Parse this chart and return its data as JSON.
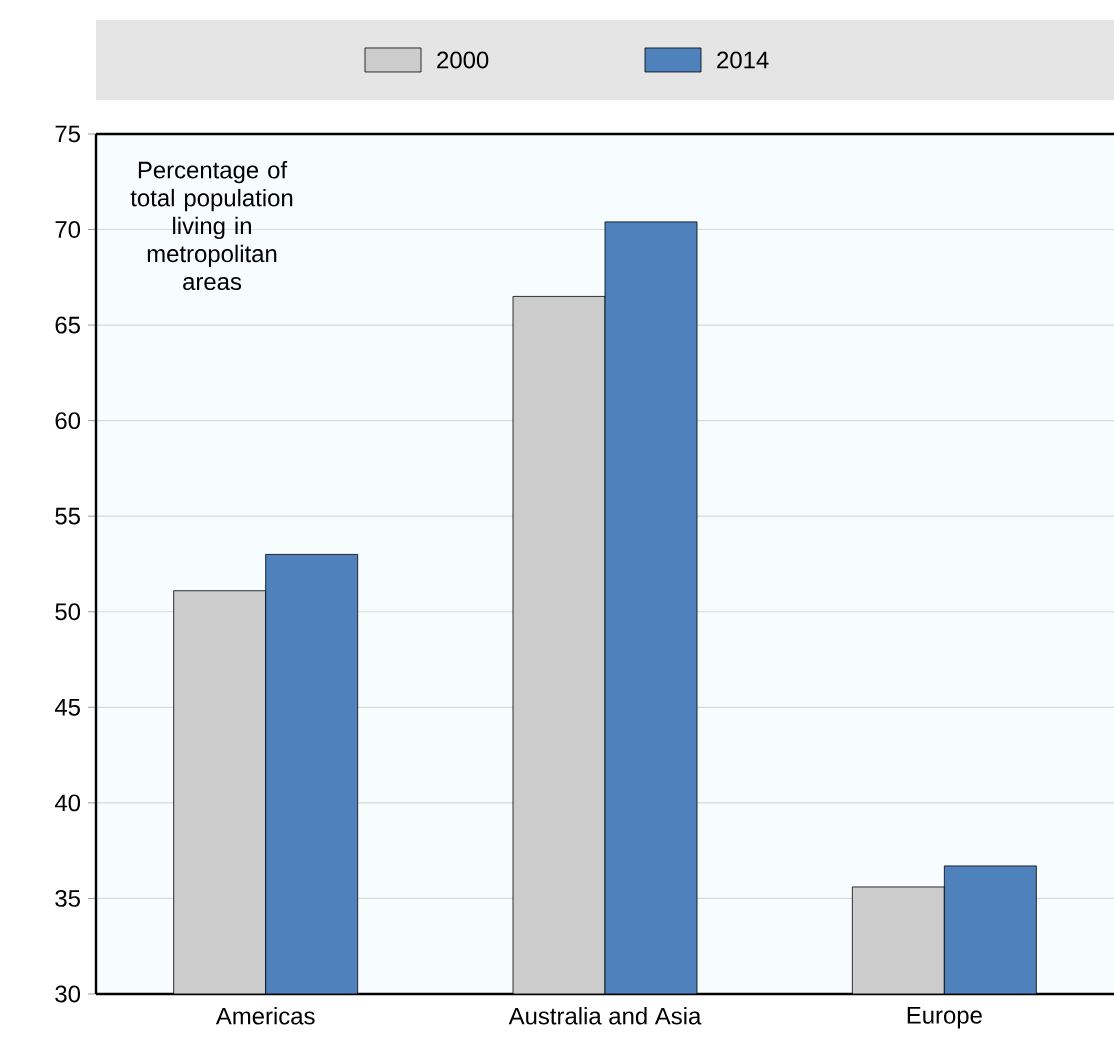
{
  "chart_data": {
    "type": "bar",
    "categories": [
      "Americas",
      "Australia and Asia",
      "Europe"
    ],
    "series": [
      {
        "name": "2000",
        "color": "#cccccc",
        "values": [
          51.1,
          66.5,
          35.6
        ]
      },
      {
        "name": "2014",
        "color": "#4f81bd",
        "values": [
          53.0,
          70.4,
          36.7
        ]
      }
    ],
    "ylim": [
      30,
      75
    ],
    "yticks": [
      30,
      35,
      40,
      45,
      50,
      55,
      60,
      65,
      70,
      75
    ],
    "grid": "y",
    "legend": "top",
    "annotations": [
      "Percentage of total population living in metropolitan areas"
    ]
  }
}
